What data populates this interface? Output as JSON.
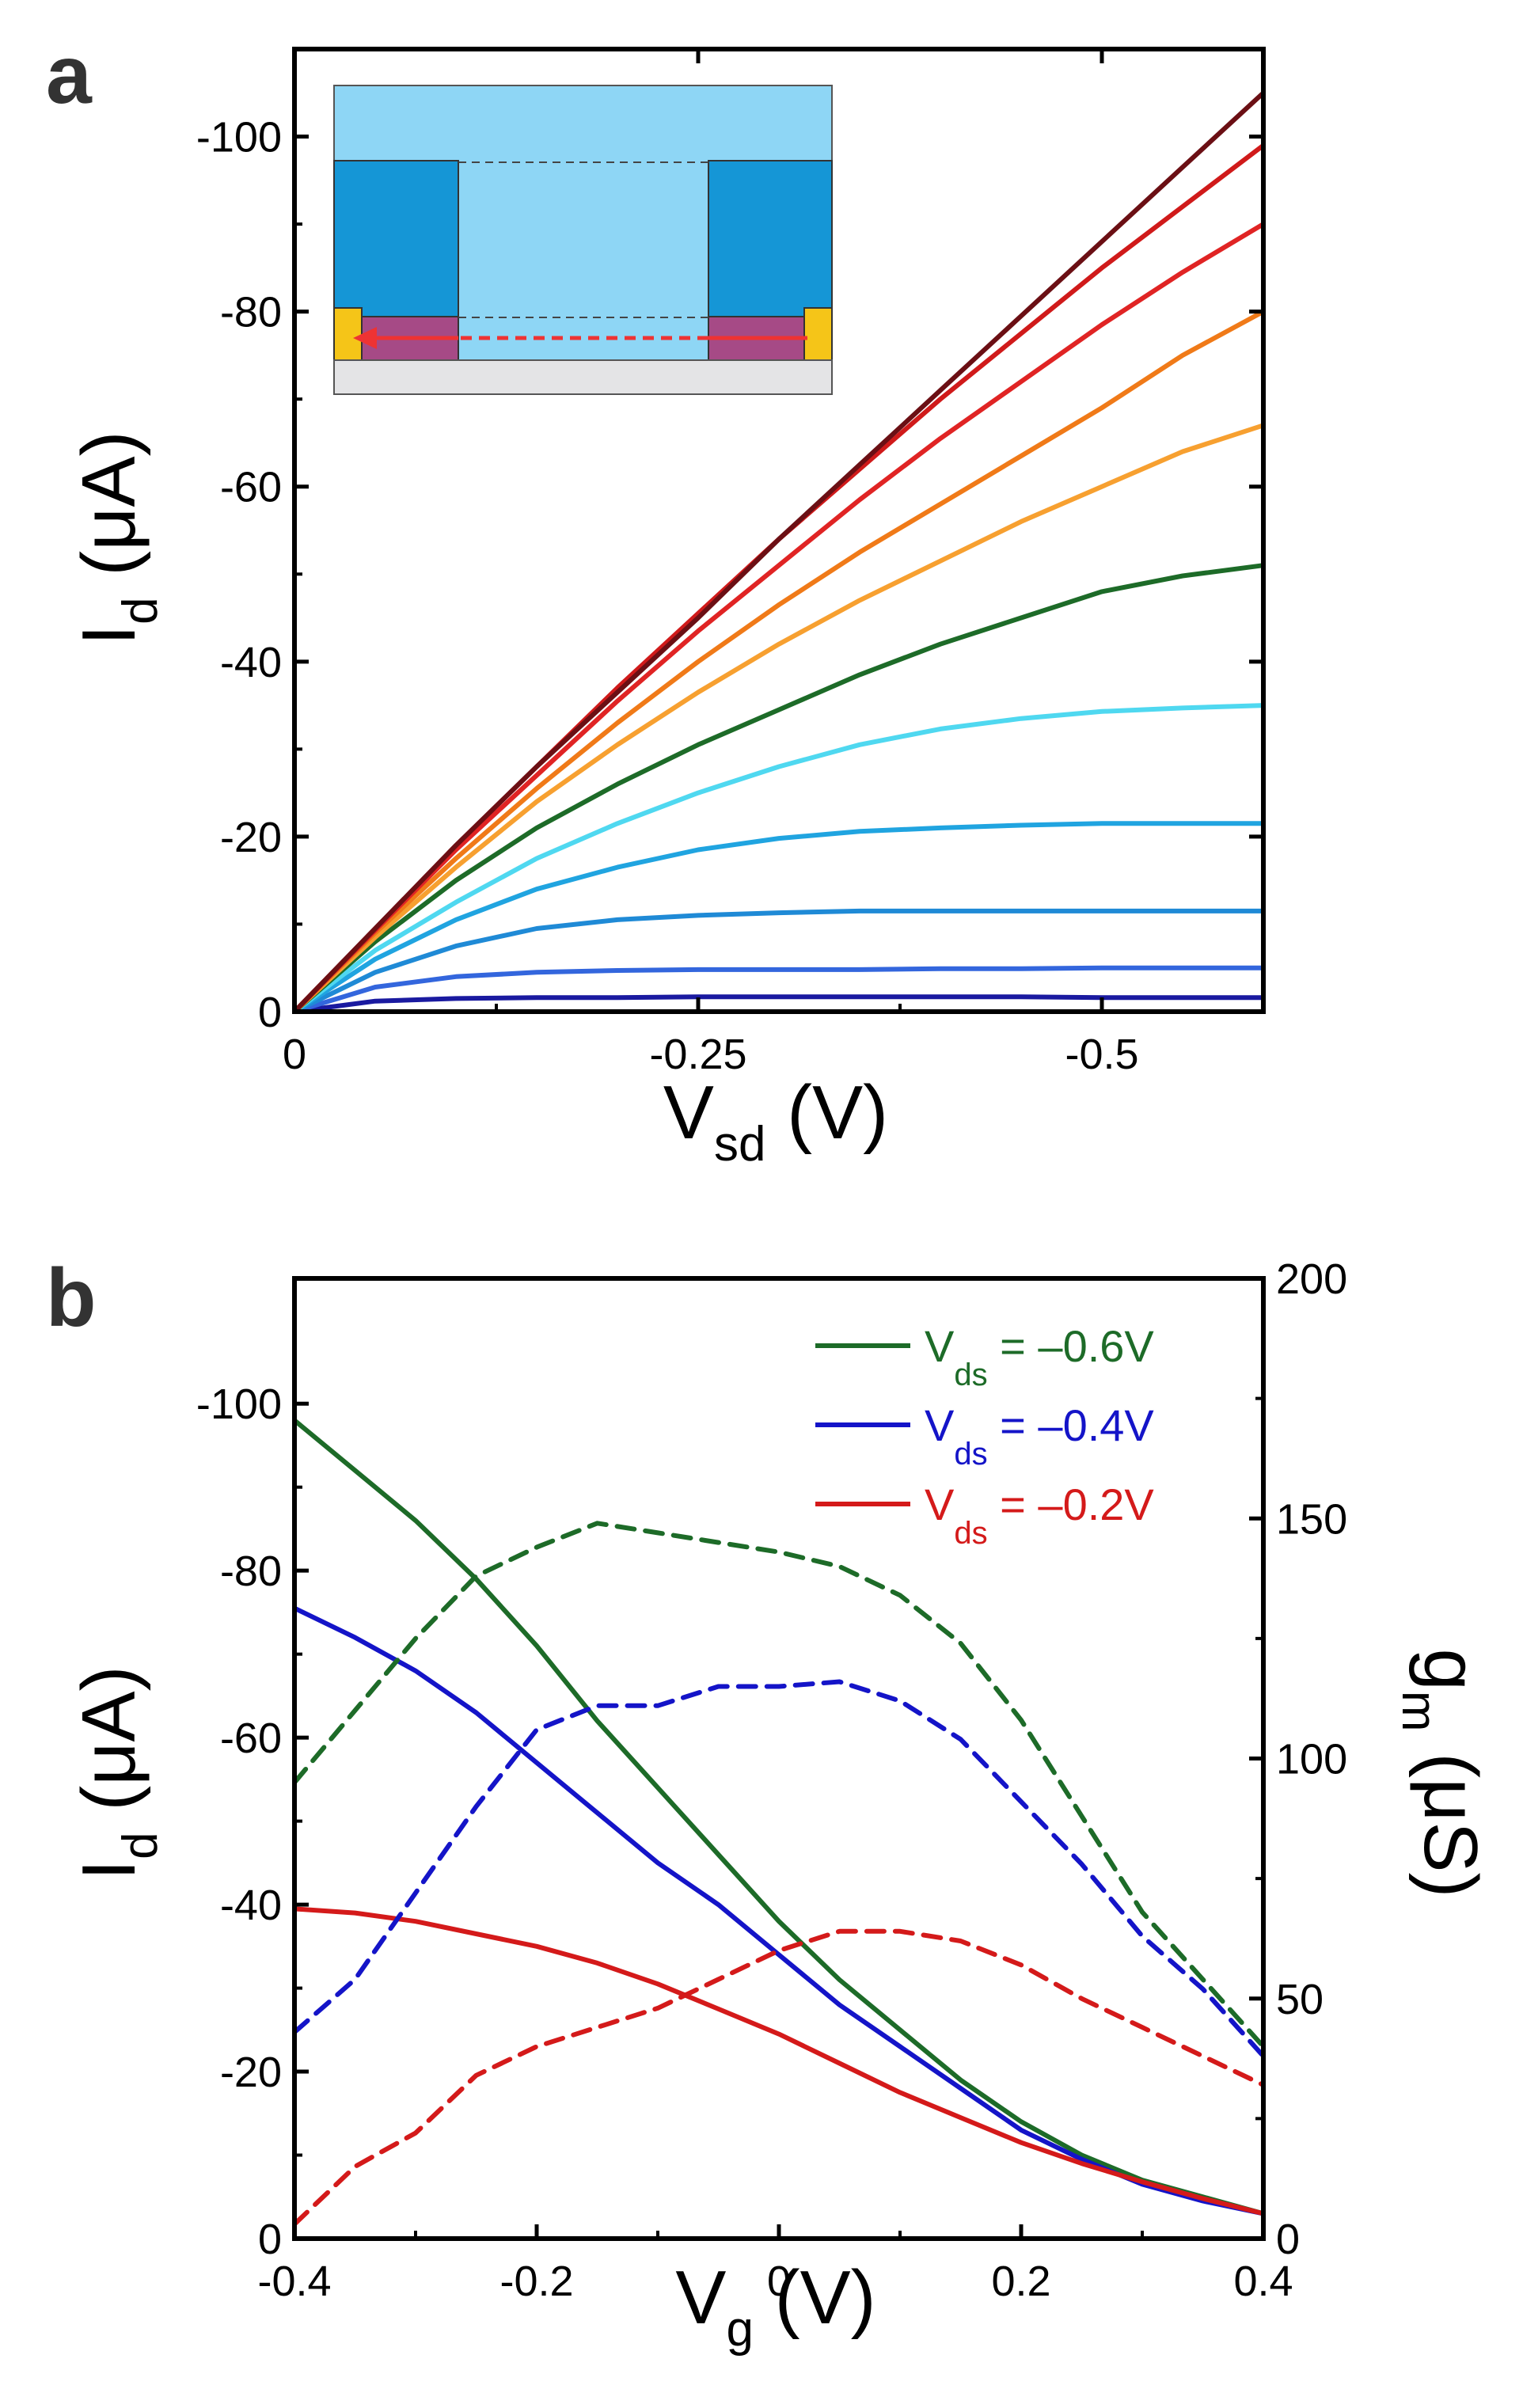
{
  "chart_data": [
    {
      "panel_label": "a",
      "type": "line",
      "xlabel": {
        "main": "V",
        "sub": "sd",
        "unit": " (V)"
      },
      "ylabel": {
        "main": "I",
        "sub": "d",
        "unit": " (μA)"
      },
      "xlim": [
        0,
        -0.6
      ],
      "ylim": [
        0,
        -110
      ],
      "x_ticks": [
        0,
        -0.25,
        -0.5
      ],
      "x_tick_labels": [
        "0",
        "-0.25",
        "-0.5"
      ],
      "y_ticks": [
        0,
        -20,
        -40,
        -60,
        -80,
        -100
      ],
      "y_tick_labels": [
        "0",
        "-20",
        "-40",
        "-60",
        "-80",
        "-100"
      ],
      "grid": false,
      "legend": "none",
      "x": [
        0,
        -0.05,
        -0.1,
        -0.15,
        -0.2,
        -0.25,
        -0.3,
        -0.35,
        -0.4,
        -0.45,
        -0.5,
        -0.55,
        -0.6
      ],
      "series": [
        {
          "color": "#1a1aa0",
          "values": [
            0,
            -1.2,
            -1.5,
            -1.6,
            -1.6,
            -1.7,
            -1.7,
            -1.7,
            -1.7,
            -1.7,
            -1.6,
            -1.6,
            -1.6
          ]
        },
        {
          "color": "#3366dd",
          "values": [
            0,
            -2.8,
            -4.0,
            -4.5,
            -4.7,
            -4.8,
            -4.8,
            -4.8,
            -4.9,
            -4.9,
            -5.0,
            -5.0,
            -5.0
          ]
        },
        {
          "color": "#1f8ad6",
          "values": [
            0,
            -4.5,
            -7.5,
            -9.5,
            -10.5,
            -11.0,
            -11.3,
            -11.5,
            -11.5,
            -11.5,
            -11.5,
            -11.5,
            -11.5
          ]
        },
        {
          "color": "#20a4e0",
          "values": [
            0,
            -6.0,
            -10.5,
            -14.0,
            -16.5,
            -18.5,
            -19.8,
            -20.6,
            -21.0,
            -21.3,
            -21.5,
            -21.5,
            -21.5
          ]
        },
        {
          "color": "#4fd8f0",
          "values": [
            0,
            -7.0,
            -12.5,
            -17.5,
            -21.5,
            -25.0,
            -28.0,
            -30.5,
            -32.3,
            -33.5,
            -34.3,
            -34.7,
            -35.0
          ]
        },
        {
          "color": "#1d6b28",
          "values": [
            0,
            -8.0,
            -15.0,
            -21.0,
            -26.0,
            -30.5,
            -34.5,
            -38.5,
            -42.0,
            -45.0,
            -48.0,
            -49.8,
            -51.0
          ]
        },
        {
          "color": "#f7a030",
          "values": [
            0,
            -8.5,
            -16.5,
            -24.0,
            -30.5,
            -36.5,
            -42.0,
            -47.0,
            -51.5,
            -56.0,
            -60.0,
            -64.0,
            -67.0
          ]
        },
        {
          "color": "#f07a18",
          "values": [
            0,
            -9.0,
            -17.5,
            -25.5,
            -33.0,
            -40.0,
            -46.5,
            -52.5,
            -58.0,
            -63.5,
            -69.0,
            -75.0,
            -80.0
          ]
        },
        {
          "color": "#e02424",
          "values": [
            0,
            -9.3,
            -18.5,
            -27.0,
            -35.5,
            -43.5,
            -51.0,
            -58.5,
            -65.5,
            -72.0,
            -78.5,
            -84.5,
            -90.0
          ]
        },
        {
          "color": "#d01a1a",
          "values": [
            0,
            -9.5,
            -19.0,
            -28.0,
            -37.0,
            -45.5,
            -54.0,
            -62.0,
            -70.0,
            -77.5,
            -85.0,
            -92.0,
            -99.0
          ]
        },
        {
          "color": "#6b0f14",
          "values": [
            0,
            -9.5,
            -19.0,
            -28.0,
            -36.5,
            -45.0,
            -54.0,
            -62.5,
            -71.0,
            -79.5,
            -88.0,
            -96.5,
            -105.0
          ]
        }
      ],
      "inset": {
        "colors": {
          "electrolyte": "#8ed6f5",
          "gate_blocks": "#1596d6",
          "channel": "#a64a86",
          "contact": "#f5c518",
          "substrate": "#e4e4e6",
          "arrow": "#ee3333"
        }
      }
    },
    {
      "panel_label": "b",
      "type": "line",
      "xlabel": {
        "main": "V",
        "sub": "g",
        "unit": " (V)"
      },
      "ylabel": {
        "main": "I",
        "sub": "d",
        "unit": " (μA)"
      },
      "y2label": {
        "main": "g",
        "sub": "m",
        "unit": " (μS)"
      },
      "xlim": [
        -0.4,
        0.4
      ],
      "ylim": [
        0,
        -115
      ],
      "y2lim": [
        0,
        200
      ],
      "x_ticks": [
        -0.4,
        -0.2,
        0,
        0.2,
        0.4
      ],
      "x_tick_labels": [
        "-0.4",
        "-0.2",
        "0",
        "0.2",
        "0.4"
      ],
      "y_ticks": [
        0,
        -20,
        -40,
        -60,
        -80,
        -100
      ],
      "y_tick_labels": [
        "0",
        "-20",
        "-40",
        "-60",
        "-80",
        "-100"
      ],
      "y2_ticks": [
        0,
        50,
        100,
        150,
        200
      ],
      "y2_tick_labels": [
        "0",
        "50",
        "100",
        "150",
        "200"
      ],
      "grid": false,
      "legend": "top-right",
      "x": [
        -0.4,
        -0.35,
        -0.3,
        -0.25,
        -0.2,
        -0.15,
        -0.1,
        -0.05,
        0,
        0.05,
        0.1,
        0.15,
        0.2,
        0.25,
        0.3,
        0.35,
        0.4
      ],
      "series": [
        {
          "name": "V_ds = –0.6V",
          "legend_main": "V",
          "legend_sub": "ds",
          "legend_rest": " = –0.6V",
          "color": "#1d6b28",
          "axis": "left",
          "style": "solid",
          "values": [
            -98,
            -92,
            -86,
            -79,
            -71,
            -62,
            -54,
            -46,
            -38,
            -31,
            -25,
            -19,
            -14,
            -10,
            -7,
            -5,
            -3
          ]
        },
        {
          "name": "V_ds = –0.4V",
          "legend_main": "V",
          "legend_sub": "ds",
          "legend_rest": " = –0.4V",
          "color": "#1414c8",
          "axis": "left",
          "style": "solid",
          "values": [
            -75.5,
            -72,
            -68,
            -63,
            -57,
            -51,
            -45,
            -40,
            -34,
            -28,
            -23,
            -18,
            -13,
            -9.5,
            -6.5,
            -4.5,
            -3
          ]
        },
        {
          "name": "V_ds = –0.2V",
          "legend_main": "V",
          "legend_sub": "ds",
          "legend_rest": " = –0.2V",
          "color": "#d41a1a",
          "axis": "left",
          "style": "solid",
          "values": [
            -39.5,
            -39,
            -38,
            -36.5,
            -35,
            -33,
            -30.5,
            -27.5,
            -24.5,
            -21,
            -17.5,
            -14.5,
            -11.5,
            -9,
            -6.8,
            -4.8,
            -3
          ]
        },
        {
          "color": "#1d6b28",
          "axis": "right",
          "style": "dashed",
          "values": [
            95,
            110,
            125,
            138,
            144,
            149,
            147,
            145,
            143,
            140,
            134,
            124,
            108,
            88,
            68,
            54,
            40
          ]
        },
        {
          "color": "#1414c8",
          "axis": "right",
          "style": "dashed",
          "values": [
            43,
            54,
            72,
            90,
            106,
            111,
            111,
            115,
            115,
            116,
            112,
            104,
            91,
            78,
            63,
            52,
            38
          ]
        },
        {
          "color": "#d41a1a",
          "axis": "right",
          "style": "dashed",
          "values": [
            3,
            15,
            22,
            34,
            40,
            44,
            48,
            54,
            60,
            64,
            64,
            62,
            57,
            50,
            44,
            38,
            32
          ]
        }
      ]
    }
  ]
}
